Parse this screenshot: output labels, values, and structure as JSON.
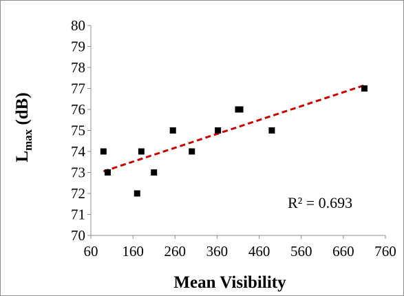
{
  "chart_data": {
    "type": "scatter",
    "title": "",
    "xlabel": "Mean Visibility",
    "ylabel": {
      "main": "L",
      "subscript": "max",
      "suffix": " (dB)"
    },
    "xlim": [
      60,
      760
    ],
    "ylim": [
      70,
      80
    ],
    "xticks": [
      60,
      160,
      260,
      360,
      460,
      560,
      660,
      760
    ],
    "yticks": [
      70,
      71,
      72,
      73,
      74,
      75,
      76,
      77,
      78,
      79,
      80
    ],
    "grid": false,
    "marker": {
      "shape": "square",
      "color": "#000000"
    },
    "points": [
      {
        "x": 90,
        "y": 74
      },
      {
        "x": 100,
        "y": 73
      },
      {
        "x": 170,
        "y": 72
      },
      {
        "x": 180,
        "y": 74
      },
      {
        "x": 210,
        "y": 73
      },
      {
        "x": 255,
        "y": 75
      },
      {
        "x": 300,
        "y": 74
      },
      {
        "x": 362,
        "y": 75
      },
      {
        "x": 410,
        "y": 76
      },
      {
        "x": 415,
        "y": 76
      },
      {
        "x": 490,
        "y": 75
      },
      {
        "x": 710,
        "y": 77
      }
    ],
    "trendline": {
      "type": "linear",
      "color": "#cc0000",
      "style": "dashed",
      "x": [
        90,
        710
      ],
      "y": [
        73.05,
        77.15
      ],
      "annotation": "R² = 0.693"
    }
  }
}
